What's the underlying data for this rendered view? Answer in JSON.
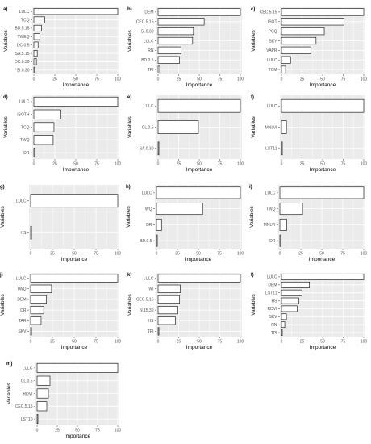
{
  "axis_text": {
    "xlabel": "Importance",
    "ylabel": "Variables"
  },
  "colors": {
    "panel": "#ebebeb",
    "grid": "#ffffff",
    "bar_fill": "#ffffff",
    "bar_stroke": "#000000",
    "tick_text": "#4d4d4d"
  },
  "chart_data": [
    {
      "panel": "a)",
      "type": "bar",
      "orientation": "horizontal",
      "grid": true,
      "categories": [
        "LULC",
        "TCQ",
        "BD.5.15",
        "TWEQ",
        "DC.0.5",
        "SA.5.15",
        "DC.0.30",
        "SI.0.30"
      ],
      "values": [
        100,
        13,
        9,
        7,
        5,
        4,
        3,
        1
      ],
      "xticks": [
        "0",
        "25",
        "50",
        "75",
        "100"
      ],
      "xlim": [
        0,
        100
      ],
      "xlabel": "Importance",
      "ylabel": "Variables"
    },
    {
      "panel": "b)",
      "type": "bar",
      "orientation": "horizontal",
      "grid": true,
      "categories": [
        "DEM",
        "CEC.5.15",
        "SI.0.30",
        "LULC",
        "RN",
        "BD.0.5",
        "TPI"
      ],
      "values": [
        100,
        56,
        43,
        42,
        28,
        26,
        2
      ],
      "xticks": [
        "0",
        "25",
        "50",
        "75",
        "100"
      ],
      "xlim": [
        0,
        100
      ],
      "xlabel": "Importance",
      "ylabel": "Variables"
    },
    {
      "panel": "c)",
      "type": "bar",
      "orientation": "horizontal",
      "grid": true,
      "categories": [
        "CEC.5.15",
        "ISOT",
        "PCQ",
        "SKY",
        "VAPR",
        "LULC",
        "TCM"
      ],
      "values": [
        100,
        76,
        52,
        42,
        36,
        11,
        5
      ],
      "xticks": [
        "0",
        "25",
        "50",
        "75",
        "100"
      ],
      "xlim": [
        0,
        100
      ],
      "xlabel": "Importance",
      "ylabel": "Variables"
    },
    {
      "panel": "d)",
      "type": "bar",
      "orientation": "horizontal",
      "grid": true,
      "categories": [
        "LULC",
        "ISOTH",
        "TCQ",
        "TWQ",
        "DR"
      ],
      "values": [
        100,
        32,
        24,
        23,
        1
      ],
      "xticks": [
        "0",
        "25",
        "50",
        "75",
        "100"
      ],
      "xlim": [
        0,
        100
      ],
      "xlabel": "Importance",
      "ylabel": "Variables"
    },
    {
      "panel": "e)",
      "type": "bar",
      "orientation": "horizontal",
      "grid": true,
      "categories": [
        "LULC",
        "CL.0.5",
        "SA.0.30"
      ],
      "values": [
        100,
        49,
        1
      ],
      "xticks": [
        "0",
        "25",
        "50",
        "75",
        "100"
      ],
      "xlim": [
        0,
        100
      ],
      "xlabel": "Importance",
      "ylabel": "Variables"
    },
    {
      "panel": "f)",
      "type": "bar",
      "orientation": "horizontal",
      "grid": true,
      "categories": [
        "LULC",
        "MNLVI",
        "LST11"
      ],
      "values": [
        100,
        6,
        1
      ],
      "xticks": [
        "0",
        "25",
        "50",
        "75",
        "100"
      ],
      "xlim": [
        0,
        100
      ],
      "xlabel": "Importance",
      "ylabel": "Variables"
    },
    {
      "panel": "g)",
      "type": "bar",
      "orientation": "horizontal",
      "grid": true,
      "categories": [
        "LULC",
        "HS"
      ],
      "values": [
        100,
        1
      ],
      "xticks": [
        "0",
        "25",
        "50",
        "75",
        "100"
      ],
      "xlim": [
        0,
        100
      ],
      "xlabel": "Importance",
      "ylabel": "Variables"
    },
    {
      "panel": "h)",
      "type": "bar",
      "orientation": "horizontal",
      "grid": true,
      "categories": [
        "LULC",
        "TWQ",
        "DR",
        "BD.0.5"
      ],
      "values": [
        100,
        55,
        6,
        1
      ],
      "xticks": [
        "0",
        "25",
        "50",
        "75",
        "100"
      ],
      "xlim": [
        0,
        100
      ],
      "xlabel": "Importance",
      "ylabel": "Variables"
    },
    {
      "panel": "i)",
      "type": "bar",
      "orientation": "horizontal",
      "grid": true,
      "categories": [
        "LULC",
        "TWQ",
        "MNLVI",
        "DR"
      ],
      "values": [
        100,
        27,
        8,
        1
      ],
      "xticks": [
        "0",
        "25",
        "50",
        "75",
        "100"
      ],
      "xlim": [
        0,
        100
      ],
      "xlabel": "Importance",
      "ylabel": "Variables"
    },
    {
      "panel": "j)",
      "type": "bar",
      "orientation": "horizontal",
      "grid": true,
      "categories": [
        "LULC",
        "TWQ",
        "DEM",
        "DR",
        "TAR",
        "SKV"
      ],
      "values": [
        100,
        24,
        18,
        15,
        12,
        1
      ],
      "xticks": [
        "0",
        "25",
        "50",
        "75",
        "100"
      ],
      "xlim": [
        0,
        100
      ],
      "xlabel": "Importance",
      "ylabel": "Variables"
    },
    {
      "panel": "k)",
      "type": "bar",
      "orientation": "horizontal",
      "grid": true,
      "categories": [
        "LULC",
        "WI",
        "CEC.5.15",
        "N.15.30",
        "HS",
        "TPI"
      ],
      "values": [
        100,
        27,
        26,
        24,
        21,
        1
      ],
      "xticks": [
        "0",
        "25",
        "50",
        "75",
        "100"
      ],
      "xlim": [
        0,
        100
      ],
      "xlabel": "Importance",
      "ylabel": "Variables"
    },
    {
      "panel": "l)",
      "type": "bar",
      "orientation": "horizontal",
      "grid": true,
      "categories": [
        "LULC",
        "DEM",
        "LST11",
        "HS",
        "RDVI",
        "SKV",
        "RN",
        "TPI"
      ],
      "values": [
        100,
        34,
        25,
        21,
        19,
        6,
        4,
        1
      ],
      "xticks": [
        "0",
        "25",
        "50",
        "75",
        "100"
      ],
      "xlim": [
        0,
        100
      ],
      "xlabel": "Importance",
      "ylabel": "Variables"
    },
    {
      "panel": "m)",
      "type": "bar",
      "orientation": "horizontal",
      "grid": true,
      "categories": [
        "LULC",
        "CL.0.5",
        "RDVI",
        "CEC.5.15",
        "LST10"
      ],
      "values": [
        100,
        16,
        14,
        12,
        1
      ],
      "xticks": [
        "0",
        "25",
        "50",
        "75",
        "100"
      ],
      "xlim": [
        0,
        100
      ],
      "xlabel": "Importance",
      "ylabel": "Variables"
    }
  ]
}
